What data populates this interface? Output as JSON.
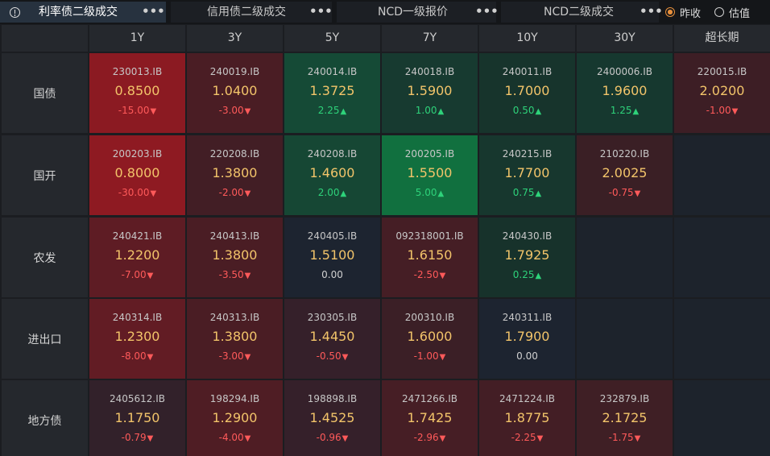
{
  "tabs": [
    {
      "label": "利率债二级成交",
      "active": true
    },
    {
      "label": "信用债二级成交",
      "active": false
    },
    {
      "label": "NCD一级报价",
      "active": false
    },
    {
      "label": "NCD二级成交",
      "active": false
    }
  ],
  "tab_more_glyph": "•••",
  "radios": [
    {
      "label": "昨收",
      "selected": true
    },
    {
      "label": "估值",
      "selected": false
    }
  ],
  "columns": [
    "1Y",
    "3Y",
    "5Y",
    "7Y",
    "10Y",
    "30Y",
    "超长期"
  ],
  "rows": [
    {
      "label": "国债",
      "cells": [
        {
          "code": "230013.IB",
          "yield": "0.8500",
          "change": "-15.00",
          "dir": "down",
          "bg": "#8b1a22"
        },
        {
          "code": "240019.IB",
          "yield": "1.0400",
          "change": "-3.00",
          "dir": "down",
          "bg": "#4a1d24"
        },
        {
          "code": "240014.IB",
          "yield": "1.3725",
          "change": "2.25",
          "dir": "up",
          "bg": "#154a36"
        },
        {
          "code": "240018.IB",
          "yield": "1.5900",
          "change": "1.00",
          "dir": "up",
          "bg": "#173a30"
        },
        {
          "code": "240011.IB",
          "yield": "1.7000",
          "change": "0.50",
          "dir": "up",
          "bg": "#17342c"
        },
        {
          "code": "2400006.IB",
          "yield": "1.9600",
          "change": "1.25",
          "dir": "up",
          "bg": "#16382f"
        },
        {
          "code": "220015.IB",
          "yield": "2.0200",
          "change": "-1.00",
          "dir": "down",
          "bg": "#3d1e25"
        }
      ]
    },
    {
      "label": "国开",
      "cells": [
        {
          "code": "200203.IB",
          "yield": "0.8000",
          "change": "-30.00",
          "dir": "down",
          "bg": "#8e1a22"
        },
        {
          "code": "220208.IB",
          "yield": "1.3800",
          "change": "-2.00",
          "dir": "down",
          "bg": "#421e25"
        },
        {
          "code": "240208.IB",
          "yield": "1.4600",
          "change": "2.00",
          "dir": "up",
          "bg": "#164734"
        },
        {
          "code": "200205.IB",
          "yield": "1.5500",
          "change": "5.00",
          "dir": "up",
          "bg": "#11703f"
        },
        {
          "code": "240215.IB",
          "yield": "1.7700",
          "change": "0.75",
          "dir": "up",
          "bg": "#17372e"
        },
        {
          "code": "210220.IB",
          "yield": "2.0025",
          "change": "-0.75",
          "dir": "down",
          "bg": "#3a1f25"
        },
        null
      ]
    },
    {
      "label": "农发",
      "cells": [
        {
          "code": "240421.IB",
          "yield": "1.2200",
          "change": "-7.00",
          "dir": "down",
          "bg": "#5e1c24"
        },
        {
          "code": "240413.IB",
          "yield": "1.3800",
          "change": "-3.50",
          "dir": "down",
          "bg": "#4a1d24"
        },
        {
          "code": "240405.IB",
          "yield": "1.5100",
          "change": "0.00",
          "dir": "flat",
          "bg": "#1d2430"
        },
        {
          "code": "092318001.IB",
          "yield": "1.6150",
          "change": "-2.50",
          "dir": "down",
          "bg": "#451e25"
        },
        {
          "code": "240430.IB",
          "yield": "1.7925",
          "change": "0.25",
          "dir": "up",
          "bg": "#17322b"
        },
        null,
        null
      ]
    },
    {
      "label": "进出口",
      "cells": [
        {
          "code": "240314.IB",
          "yield": "1.2300",
          "change": "-8.00",
          "dir": "down",
          "bg": "#621c24"
        },
        {
          "code": "240313.IB",
          "yield": "1.3800",
          "change": "-3.00",
          "dir": "down",
          "bg": "#4a1d24"
        },
        {
          "code": "230305.IB",
          "yield": "1.4450",
          "change": "-0.50",
          "dir": "down",
          "bg": "#35202a"
        },
        {
          "code": "200310.IB",
          "yield": "1.6000",
          "change": "-1.00",
          "dir": "down",
          "bg": "#3b1f26"
        },
        {
          "code": "240311.IB",
          "yield": "1.7900",
          "change": "0.00",
          "dir": "flat",
          "bg": "#1d2430"
        },
        null,
        null
      ]
    },
    {
      "label": "地方债",
      "cells": [
        {
          "code": "2405612.IB",
          "yield": "1.1750",
          "change": "-0.79",
          "dir": "down",
          "bg": "#32212a"
        },
        {
          "code": "198294.IB",
          "yield": "1.2900",
          "change": "-4.00",
          "dir": "down",
          "bg": "#4f1d24"
        },
        {
          "code": "198898.IB",
          "yield": "1.4525",
          "change": "-0.96",
          "dir": "down",
          "bg": "#35202a"
        },
        {
          "code": "2471266.IB",
          "yield": "1.7425",
          "change": "-2.96",
          "dir": "down",
          "bg": "#461e25"
        },
        {
          "code": "2471224.IB",
          "yield": "1.8775",
          "change": "-2.25",
          "dir": "down",
          "bg": "#431e25"
        },
        {
          "code": "232879.IB",
          "yield": "2.1725",
          "change": "-1.75",
          "dir": "down",
          "bg": "#3f1f25"
        },
        null
      ]
    }
  ],
  "empty_bg": "#1d232c"
}
